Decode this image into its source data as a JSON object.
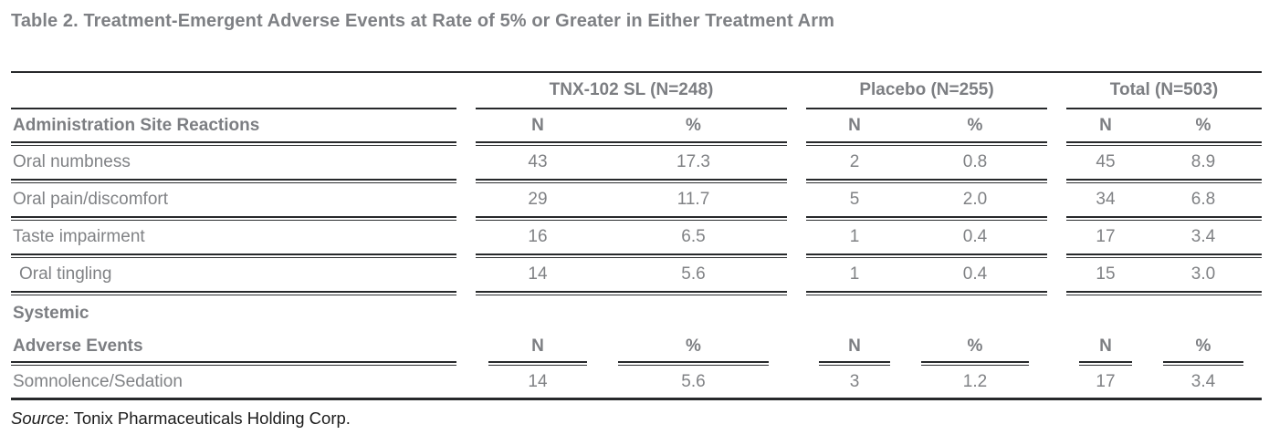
{
  "title": "Table 2. Treatment-Emergent Adverse Events at Rate of 5% or Greater in Either Treatment Arm",
  "colors": {
    "text_gray": "#808285",
    "header_gray": "#7c7e82",
    "rule_dark": "#27292b",
    "source_black": "#1c1c1c",
    "background": "#ffffff"
  },
  "table": {
    "groups": [
      {
        "label": "TNX-102 SL (N=248)"
      },
      {
        "label": "Placebo (N=255)"
      },
      {
        "label": "Total (N=503)"
      }
    ],
    "section1": {
      "header_label": "Administration Site Reactions",
      "cols": [
        "N",
        "%",
        "N",
        "%",
        "N",
        "%"
      ],
      "rows": [
        {
          "label": "Oral numbness",
          "values": [
            "43",
            "17.3",
            "2",
            "0.8",
            "45",
            "8.9"
          ]
        },
        {
          "label": "Oral pain/discomfort",
          "values": [
            "29",
            "11.7",
            "5",
            "2.0",
            "34",
            "6.8"
          ]
        },
        {
          "label": "Taste impairment",
          "values": [
            "16",
            "6.5",
            "1",
            "0.4",
            "17",
            "3.4"
          ]
        },
        {
          "label": "Oral tingling",
          "values": [
            "14",
            "5.6",
            "1",
            "0.4",
            "15",
            "3.0"
          ]
        }
      ]
    },
    "section2": {
      "section_label": "Systemic",
      "header_label": "Adverse Events",
      "cols": [
        "N",
        "%",
        "N",
        "%",
        "N",
        "%"
      ],
      "rows": [
        {
          "label": "Somnolence/Sedation",
          "values": [
            "14",
            "5.6",
            "3",
            "1.2",
            "17",
            "3.4"
          ]
        }
      ]
    }
  },
  "source": {
    "prefix": "Source",
    "rest": ": Tonix Pharmaceuticals Holding Corp."
  },
  "chart_data": {
    "type": "table",
    "title": "Table 2. Treatment-Emergent Adverse Events at Rate of 5% or Greater in Either Treatment Arm",
    "column_groups": [
      "TNX-102 SL (N=248)",
      "Placebo (N=255)",
      "Total (N=503)"
    ],
    "columns": [
      "Adverse Event",
      "TNX N",
      "TNX %",
      "Placebo N",
      "Placebo %",
      "Total N",
      "Total %"
    ],
    "rows": [
      [
        "Oral numbness",
        43,
        17.3,
        2,
        0.8,
        45,
        8.9
      ],
      [
        "Oral pain/discomfort",
        29,
        11.7,
        5,
        2.0,
        34,
        6.8
      ],
      [
        "Taste impairment",
        16,
        6.5,
        1,
        0.4,
        17,
        3.4
      ],
      [
        "Oral tingling",
        14,
        5.6,
        1,
        0.4,
        15,
        3.0
      ],
      [
        "Somnolence/Sedation",
        14,
        5.6,
        3,
        1.2,
        17,
        3.4
      ]
    ],
    "sections": [
      "Administration Site Reactions",
      "Systemic Adverse Events"
    ],
    "source": "Tonix Pharmaceuticals Holding Corp."
  }
}
